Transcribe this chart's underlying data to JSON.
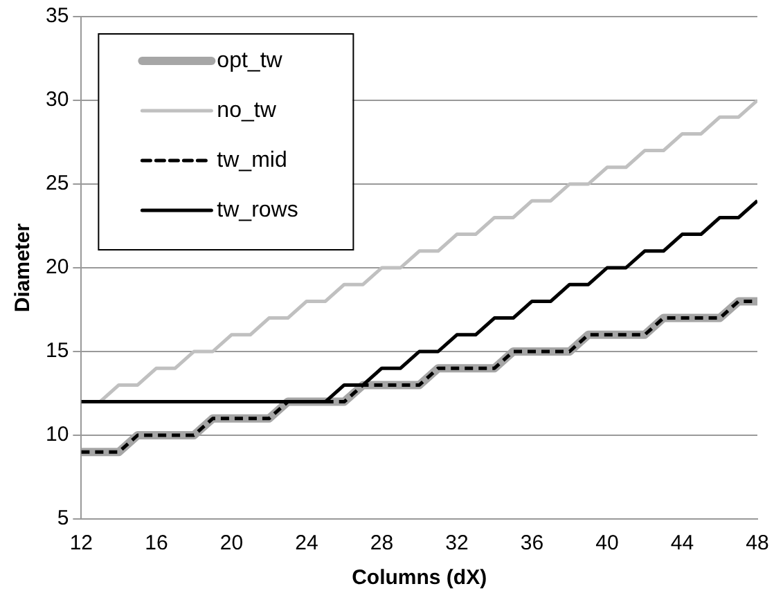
{
  "chart_data": {
    "type": "line",
    "xlabel": "Columns (dX)",
    "ylabel": "Diameter",
    "x": [
      12,
      13,
      14,
      15,
      16,
      17,
      18,
      19,
      20,
      21,
      22,
      23,
      24,
      25,
      26,
      27,
      28,
      29,
      30,
      31,
      32,
      33,
      34,
      35,
      36,
      37,
      38,
      39,
      40,
      41,
      42,
      43,
      44,
      45,
      46,
      47,
      48
    ],
    "xlim": [
      12,
      48
    ],
    "xticks": [
      12,
      16,
      20,
      24,
      28,
      32,
      36,
      40,
      44,
      48
    ],
    "ylim": [
      5,
      35
    ],
    "yticks": [
      5,
      10,
      15,
      20,
      25,
      30,
      35
    ],
    "grid": "y",
    "legend": "top left",
    "marker": "none",
    "series": [
      {
        "name": "opt_tw",
        "color": "#a6a6a6",
        "values": [
          9,
          9,
          9,
          10,
          10,
          10,
          10,
          11,
          11,
          11,
          11,
          12,
          12,
          12,
          12,
          13,
          13,
          13,
          13,
          14,
          14,
          14,
          14,
          15,
          15,
          15,
          15,
          16,
          16,
          16,
          16,
          17,
          17,
          17,
          17,
          18,
          18
        ]
      },
      {
        "name": "no_tw",
        "color": "#c0c0c0",
        "values": [
          12,
          12,
          13,
          13,
          14,
          14,
          15,
          15,
          16,
          16,
          17,
          17,
          18,
          18,
          19,
          19,
          20,
          20,
          21,
          21,
          22,
          22,
          23,
          23,
          24,
          24,
          25,
          25,
          26,
          26,
          27,
          27,
          28,
          28,
          29,
          29,
          30
        ]
      },
      {
        "name": "tw_mid",
        "color": "#000000",
        "line_style": "dashed",
        "values": [
          9,
          9,
          9,
          10,
          10,
          10,
          10,
          11,
          11,
          11,
          11,
          12,
          12,
          12,
          12,
          13,
          13,
          13,
          13,
          14,
          14,
          14,
          14,
          15,
          15,
          15,
          15,
          16,
          16,
          16,
          16,
          17,
          17,
          17,
          17,
          18,
          18
        ]
      },
      {
        "name": "tw_rows",
        "color": "#000000",
        "values": [
          12,
          12,
          12,
          12,
          12,
          12,
          12,
          12,
          12,
          12,
          12,
          12,
          12,
          12,
          13,
          13,
          14,
          14,
          15,
          15,
          16,
          16,
          17,
          17,
          18,
          18,
          19,
          19,
          20,
          20,
          21,
          21,
          22,
          22,
          23,
          23,
          24
        ]
      }
    ]
  }
}
